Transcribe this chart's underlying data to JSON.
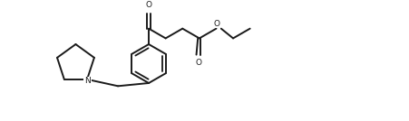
{
  "bg_color": "#ffffff",
  "line_color": "#1a1a1a",
  "line_width": 1.4,
  "fig_width": 4.52,
  "fig_height": 1.34,
  "dpi": 100,
  "N_label": "N",
  "O_label": "O"
}
